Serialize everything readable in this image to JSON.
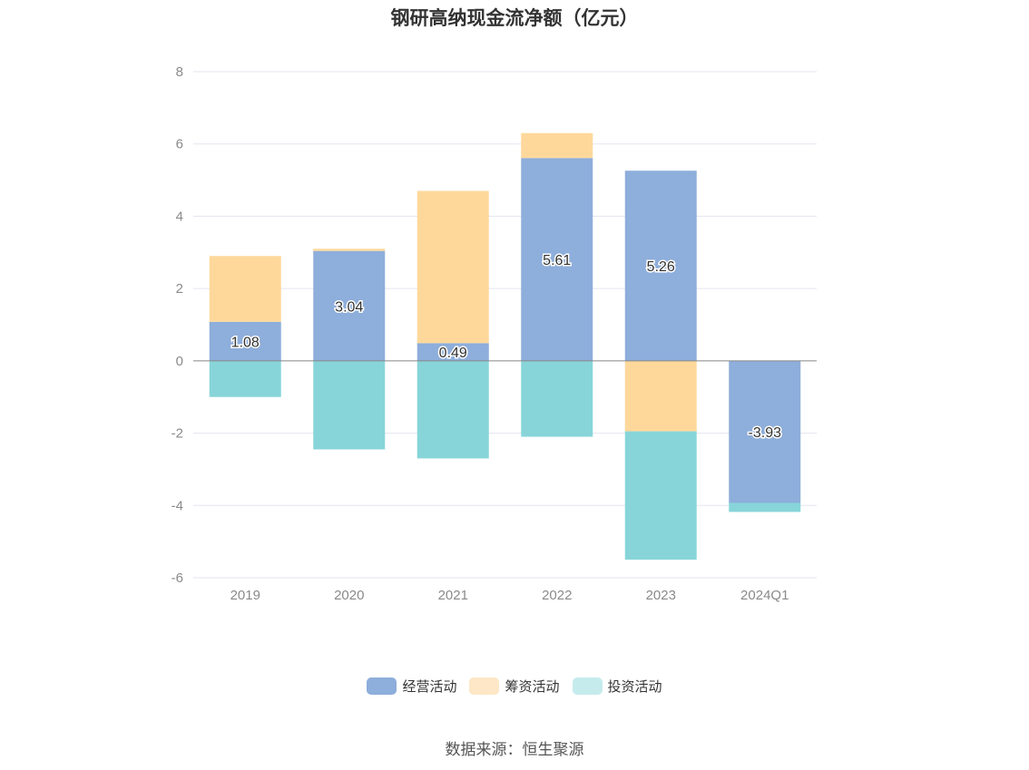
{
  "colors": {
    "operating": "#8eaedb",
    "financing": "#fed89b",
    "investing": "#87d5d9",
    "legend_financing": "#fde7c6",
    "legend_investing": "#c5ebed",
    "grid": "#e3e6ef",
    "zero_line": "#888888",
    "tick_text": "#8a8a8a"
  },
  "source_text": "数据来源：恒生聚源",
  "chart_data": {
    "type": "bar",
    "stacked": true,
    "title": "钢研高纳现金流净额（亿元）",
    "categories": [
      "2019",
      "2020",
      "2021",
      "2022",
      "2023",
      "2024Q1"
    ],
    "ylim": [
      -6,
      8
    ],
    "yticks": [
      8,
      6,
      4,
      2,
      0,
      -2,
      -4,
      -6
    ],
    "grid": true,
    "legend_position": "bottom",
    "series": [
      {
        "name": "经营活动",
        "color_key": "operating",
        "values": [
          1.08,
          3.04,
          0.49,
          5.61,
          5.26,
          -3.93
        ],
        "labels": [
          "1.08",
          "3.04",
          "0.49",
          "5.61",
          "5.26",
          "-3.93"
        ]
      },
      {
        "name": "筹资活动",
        "color_key": "financing",
        "values": [
          1.82,
          0.06,
          4.21,
          0.69,
          -1.95,
          0
        ]
      },
      {
        "name": "投资活动",
        "color_key": "investing",
        "values": [
          -1.0,
          -2.45,
          -2.7,
          -2.1,
          -3.55,
          -0.25
        ]
      }
    ]
  }
}
